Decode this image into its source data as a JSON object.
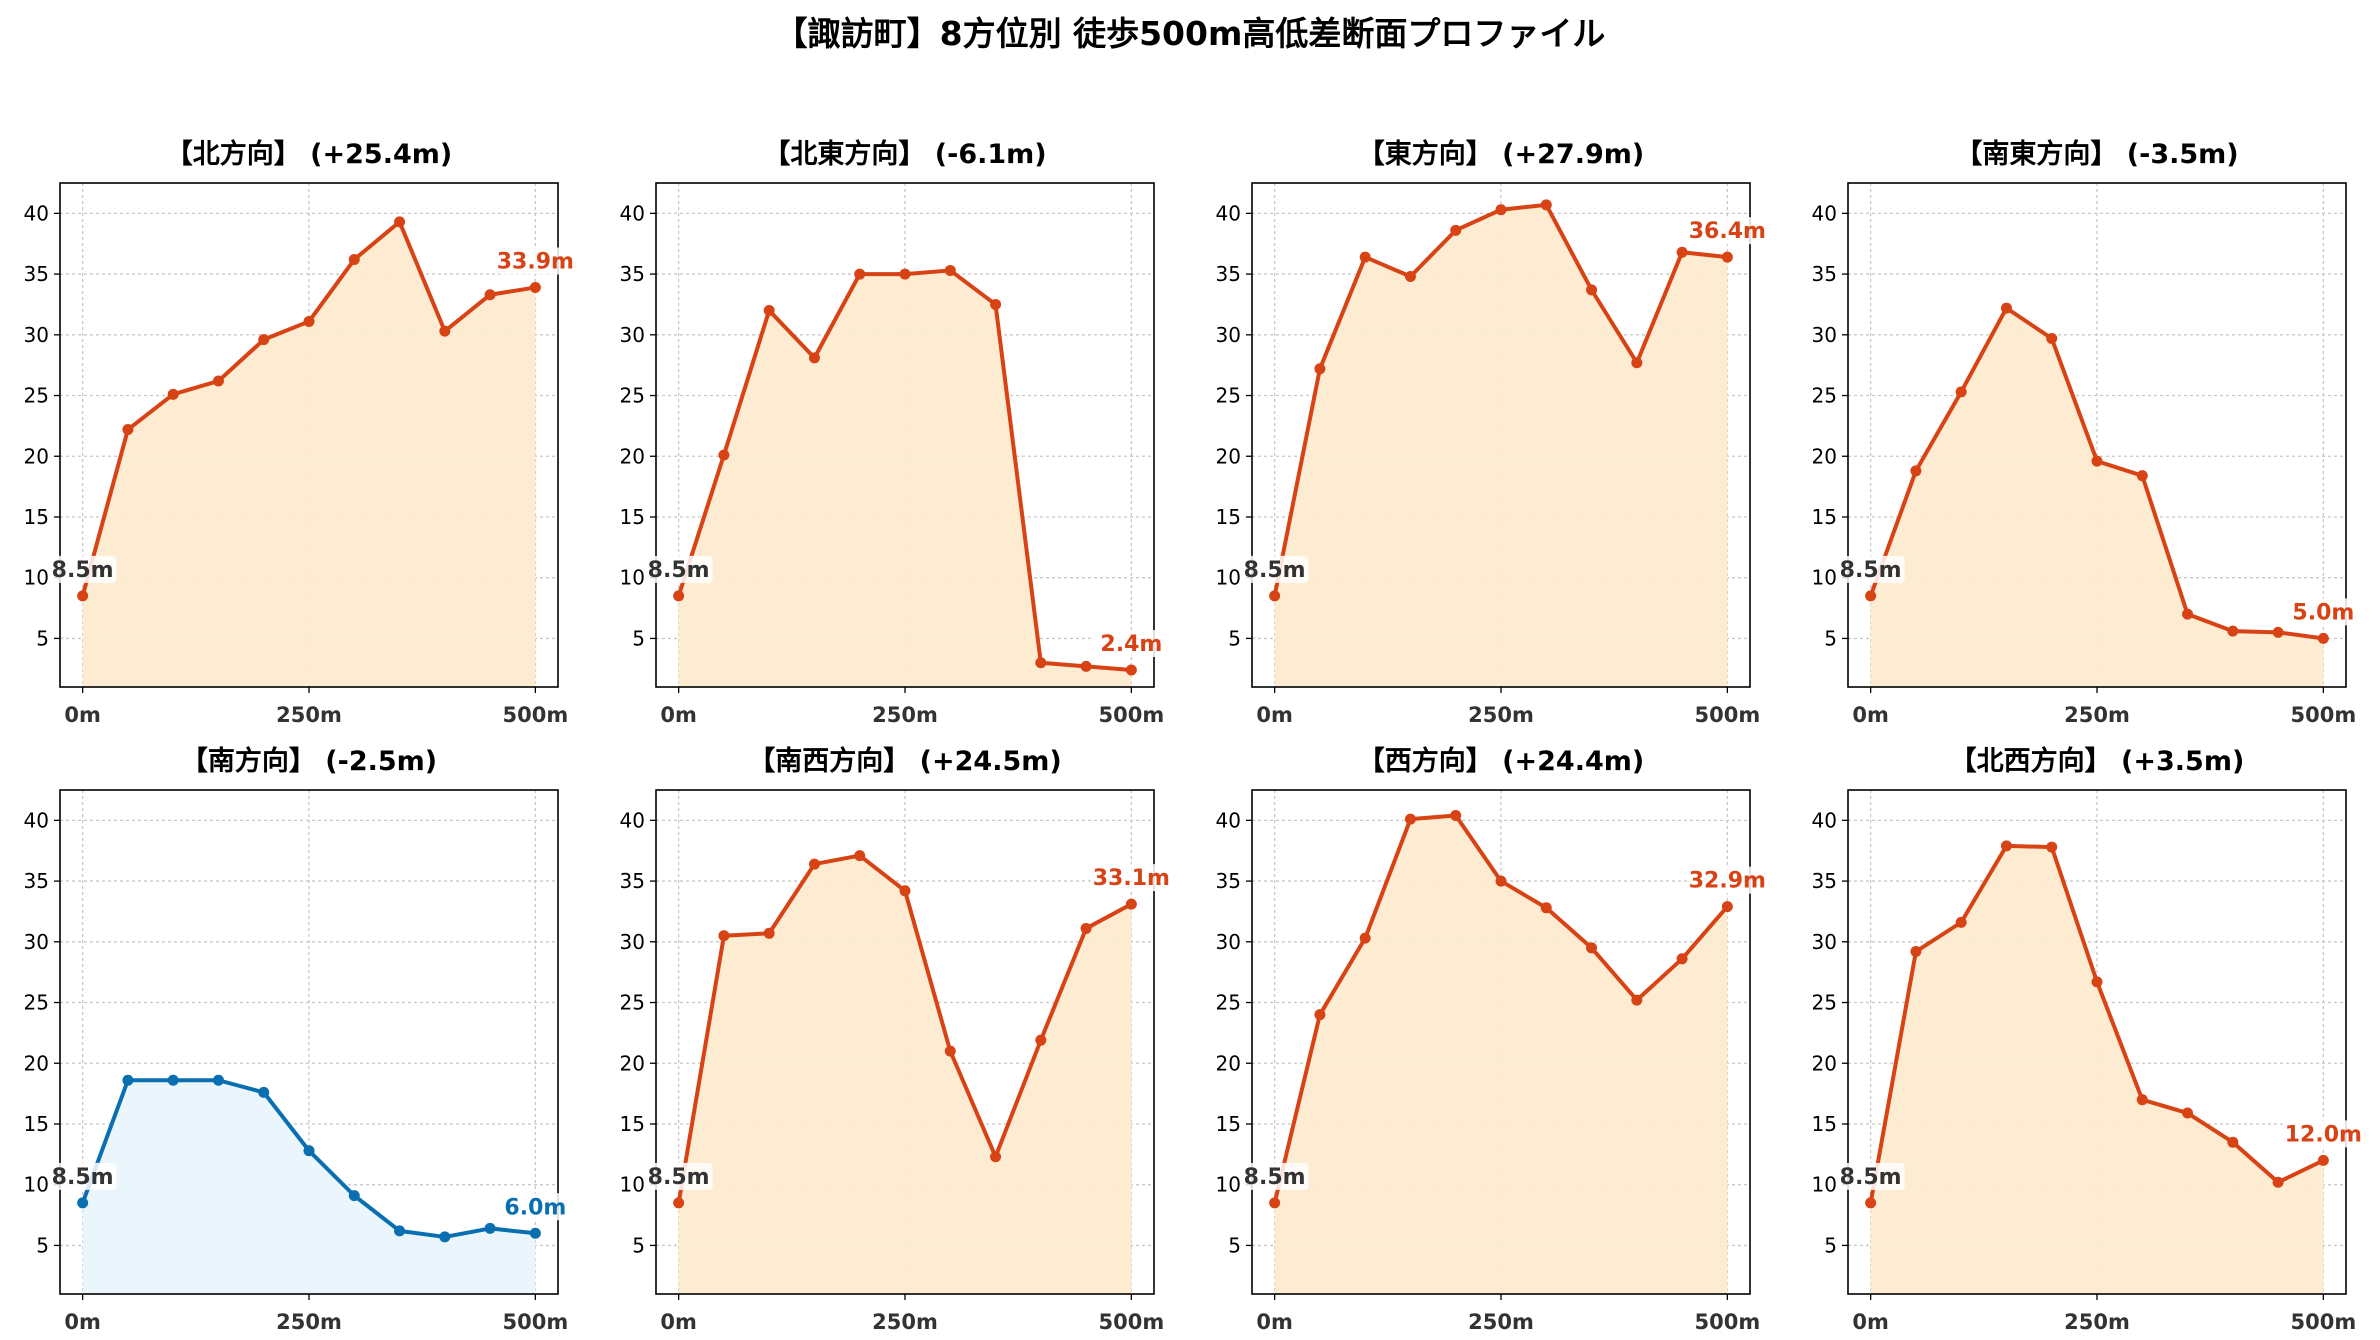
{
  "suptitle": "【諏訪町】8方位別 徒歩500m高低差断面プロファイル",
  "colors": {
    "up_line": "#d84315",
    "up_fill": "#fdebd0",
    "down_line": "#0a6fb0",
    "down_fill": "#eaf6fc",
    "start_label": "#333333",
    "grid": "#c8c8c8"
  },
  "chart_data": [
    {
      "type": "area",
      "title": "【北方向】 (+25.4m)",
      "trend": "up",
      "x": [
        0,
        50,
        100,
        150,
        200,
        250,
        300,
        350,
        400,
        450,
        500
      ],
      "y": [
        8.5,
        22.2,
        25.1,
        26.2,
        29.6,
        31.1,
        36.2,
        39.3,
        30.3,
        33.3,
        33.9
      ],
      "xticks": [
        "0m",
        "250m",
        "500m"
      ],
      "yticks": [
        "5",
        "10",
        "15",
        "20",
        "25",
        "30",
        "35",
        "40"
      ],
      "start_label": "8.5m",
      "end_label": "33.9m",
      "xlim": [
        -25,
        525
      ],
      "ylim": [
        1,
        42.5
      ],
      "grid": true
    },
    {
      "type": "area",
      "title": "【北東方向】 (-6.1m)",
      "trend": "up",
      "x": [
        0,
        50,
        100,
        150,
        200,
        250,
        300,
        350,
        400,
        450,
        500
      ],
      "y": [
        8.5,
        20.1,
        32.0,
        28.1,
        35.0,
        35.0,
        35.3,
        32.5,
        3.0,
        2.7,
        2.4
      ],
      "xticks": [
        "0m",
        "250m",
        "500m"
      ],
      "yticks": [
        "5",
        "10",
        "15",
        "20",
        "25",
        "30",
        "35",
        "40"
      ],
      "start_label": "8.5m",
      "end_label": "2.4m",
      "xlim": [
        -25,
        525
      ],
      "ylim": [
        1,
        42.5
      ],
      "grid": true
    },
    {
      "type": "area",
      "title": "【東方向】 (+27.9m)",
      "trend": "up",
      "x": [
        0,
        50,
        100,
        150,
        200,
        250,
        300,
        350,
        400,
        450,
        500
      ],
      "y": [
        8.5,
        27.2,
        36.4,
        34.8,
        38.6,
        40.3,
        40.7,
        33.7,
        27.7,
        36.8,
        36.4
      ],
      "xticks": [
        "0m",
        "250m",
        "500m"
      ],
      "yticks": [
        "5",
        "10",
        "15",
        "20",
        "25",
        "30",
        "35",
        "40"
      ],
      "start_label": "8.5m",
      "end_label": "36.4m",
      "xlim": [
        -25,
        525
      ],
      "ylim": [
        1,
        42.5
      ],
      "grid": true
    },
    {
      "type": "area",
      "title": "【南東方向】 (-3.5m)",
      "trend": "up",
      "x": [
        0,
        50,
        100,
        150,
        200,
        250,
        300,
        350,
        400,
        450,
        500
      ],
      "y": [
        8.5,
        18.8,
        25.3,
        32.2,
        29.7,
        19.6,
        18.4,
        7.0,
        5.6,
        5.5,
        5.0
      ],
      "xticks": [
        "0m",
        "250m",
        "500m"
      ],
      "yticks": [
        "5",
        "10",
        "15",
        "20",
        "25",
        "30",
        "35",
        "40"
      ],
      "start_label": "8.5m",
      "end_label": "5.0m",
      "xlim": [
        -25,
        525
      ],
      "ylim": [
        1,
        42.5
      ],
      "grid": true
    },
    {
      "type": "area",
      "title": "【南方向】 (-2.5m)",
      "trend": "down",
      "x": [
        0,
        50,
        100,
        150,
        200,
        250,
        300,
        350,
        400,
        450,
        500
      ],
      "y": [
        8.5,
        18.6,
        18.6,
        18.6,
        17.6,
        12.8,
        9.1,
        6.2,
        5.7,
        6.4,
        6.0
      ],
      "xticks": [
        "0m",
        "250m",
        "500m"
      ],
      "yticks": [
        "5",
        "10",
        "15",
        "20",
        "25",
        "30",
        "35",
        "40"
      ],
      "start_label": "8.5m",
      "end_label": "6.0m",
      "xlim": [
        -25,
        525
      ],
      "ylim": [
        1,
        42.5
      ],
      "grid": true
    },
    {
      "type": "area",
      "title": "【南西方向】 (+24.5m)",
      "trend": "up",
      "x": [
        0,
        50,
        100,
        150,
        200,
        250,
        300,
        350,
        400,
        450,
        500
      ],
      "y": [
        8.5,
        30.5,
        30.7,
        36.4,
        37.1,
        34.2,
        21.0,
        12.3,
        21.9,
        31.1,
        33.1
      ],
      "xticks": [
        "0m",
        "250m",
        "500m"
      ],
      "yticks": [
        "5",
        "10",
        "15",
        "20",
        "25",
        "30",
        "35",
        "40"
      ],
      "start_label": "8.5m",
      "end_label": "33.1m",
      "xlim": [
        -25,
        525
      ],
      "ylim": [
        1,
        42.5
      ],
      "grid": true
    },
    {
      "type": "area",
      "title": "【西方向】 (+24.4m)",
      "trend": "up",
      "x": [
        0,
        50,
        100,
        150,
        200,
        250,
        300,
        350,
        400,
        450,
        500
      ],
      "y": [
        8.5,
        24.0,
        30.3,
        40.1,
        40.4,
        35.0,
        32.8,
        29.5,
        25.2,
        28.6,
        32.9
      ],
      "xticks": [
        "0m",
        "250m",
        "500m"
      ],
      "yticks": [
        "5",
        "10",
        "15",
        "20",
        "25",
        "30",
        "35",
        "40"
      ],
      "start_label": "8.5m",
      "end_label": "32.9m",
      "xlim": [
        -25,
        525
      ],
      "ylim": [
        1,
        42.5
      ],
      "grid": true
    },
    {
      "type": "area",
      "title": "【北西方向】 (+3.5m)",
      "trend": "up",
      "x": [
        0,
        50,
        100,
        150,
        200,
        250,
        300,
        350,
        400,
        450,
        500
      ],
      "y": [
        8.5,
        29.2,
        31.6,
        37.9,
        37.8,
        26.7,
        17.0,
        15.9,
        13.5,
        10.2,
        12.0
      ],
      "xticks": [
        "0m",
        "250m",
        "500m"
      ],
      "yticks": [
        "5",
        "10",
        "15",
        "20",
        "25",
        "30",
        "35",
        "40"
      ],
      "start_label": "8.5m",
      "end_label": "12.0m",
      "xlim": [
        -25,
        525
      ],
      "ylim": [
        1,
        42.5
      ],
      "grid": true
    }
  ]
}
